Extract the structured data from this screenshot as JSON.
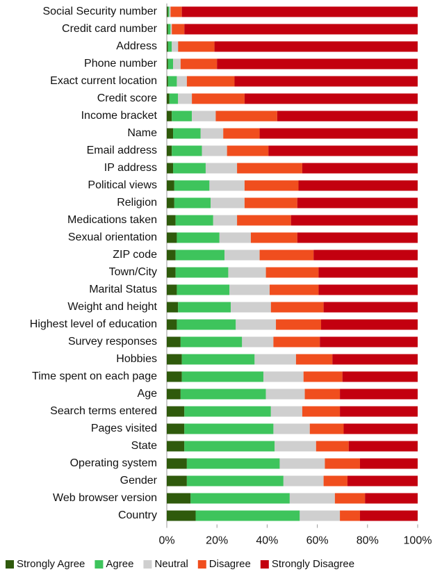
{
  "chart_data": {
    "type": "stacked-bar-horizontal",
    "categories": [
      "Social Security number",
      "Credit card number",
      "Address",
      "Phone number",
      "Exact current location",
      "Credit score",
      "Income bracket",
      "Name",
      "Email address",
      "IP address",
      "Political views",
      "Religion",
      "Medications taken",
      "Sexual orientation",
      "ZIP code",
      "Town/City",
      "Marital Status",
      "Weight and height",
      "Highest level of education",
      "Survey responses",
      "Hobbies",
      "Time spent on each page",
      "Age",
      "Search terms entered",
      "Pages visited",
      "State",
      "Operating system",
      "Gender",
      "Web browser version",
      "Country"
    ],
    "series": [
      {
        "name": "Strongly Agree",
        "color": "#2f5a0c",
        "values": [
          0.5,
          0.5,
          0.5,
          0.5,
          0.5,
          1,
          2,
          2.5,
          2,
          2.5,
          3,
          3,
          3.5,
          4,
          3.5,
          3.5,
          4,
          4.5,
          4,
          5.5,
          6,
          6,
          5.5,
          7,
          7,
          7,
          8,
          8,
          9.5,
          11.5
        ]
      },
      {
        "name": "Agree",
        "color": "#3ec45c",
        "values": [
          0.5,
          1,
          1.5,
          2,
          3.5,
          3.5,
          8,
          11,
          12,
          13,
          14,
          14.5,
          15,
          17,
          19.5,
          21,
          21,
          21,
          23.5,
          24.5,
          29,
          32.5,
          34,
          34.5,
          35.5,
          36,
          37,
          38.5,
          39.5,
          41.5
        ]
      },
      {
        "name": "Neutral",
        "color": "#cfcfcf",
        "values": [
          0.5,
          0.5,
          2.5,
          3,
          4,
          5.5,
          9.5,
          9,
          10,
          12.5,
          14,
          13.5,
          9.5,
          12.5,
          14,
          15,
          16,
          16,
          16,
          12.5,
          16.5,
          16,
          15.5,
          12.5,
          14.5,
          16.5,
          18,
          16,
          18,
          16
        ]
      },
      {
        "name": "Disagree",
        "color": "#f04e1e",
        "values": [
          4.5,
          5,
          14.5,
          14.5,
          19,
          21,
          24.5,
          14.5,
          16.5,
          26,
          21.5,
          21,
          21.5,
          18.5,
          21.5,
          21,
          19.5,
          21,
          18,
          18.5,
          14.5,
          15.5,
          14,
          15,
          13.5,
          13,
          14,
          9.5,
          12,
          8
        ]
      },
      {
        "name": "Strongly Disagree",
        "color": "#c3000f",
        "values": [
          94,
          93,
          81,
          80,
          73,
          69,
          56,
          63,
          59.5,
          46,
          47.5,
          48,
          50.5,
          48,
          41.5,
          39.5,
          39.5,
          37.5,
          38.5,
          39,
          34,
          30,
          31,
          31,
          29.5,
          27.5,
          23,
          28,
          21,
          23
        ]
      }
    ],
    "xlim": [
      0,
      100
    ],
    "xticks": [
      {
        "value": 0,
        "label": "0%"
      },
      {
        "value": 20,
        "label": "20%"
      },
      {
        "value": 40,
        "label": "40%"
      },
      {
        "value": 60,
        "label": "60%"
      },
      {
        "value": 80,
        "label": "80%"
      },
      {
        "value": 100,
        "label": "100%"
      }
    ],
    "grid": false,
    "legend": "bottom"
  }
}
